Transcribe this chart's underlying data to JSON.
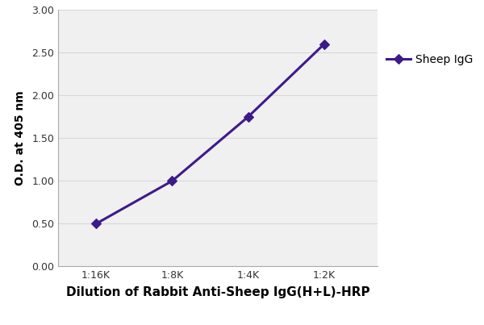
{
  "x_values": [
    1,
    2,
    3,
    4
  ],
  "y_values": [
    0.5,
    1.0,
    1.75,
    2.6
  ],
  "x_tick_labels": [
    "1:16K",
    "1:8K",
    "1:4K",
    "1:2K"
  ],
  "xlabel": "Dilution of Rabbit Anti-Sheep IgG(H+L)-HRP",
  "ylabel": "O.D. at 405 nm",
  "ylim": [
    0.0,
    3.0
  ],
  "yticks": [
    0.0,
    0.5,
    1.0,
    1.5,
    2.0,
    2.5,
    3.0
  ],
  "line_color": "#3d1a8c",
  "marker": "D",
  "marker_size": 6,
  "marker_facecolor": "#3d1a8c",
  "line_width": 2.2,
  "legend_label": "Sheep IgG",
  "background_color": "#ffffff",
  "plot_bg_color": "#f0f0f0",
  "grid_color": "#d8d8d8",
  "xlabel_fontsize": 11,
  "ylabel_fontsize": 10,
  "tick_fontsize": 9,
  "legend_fontsize": 10
}
